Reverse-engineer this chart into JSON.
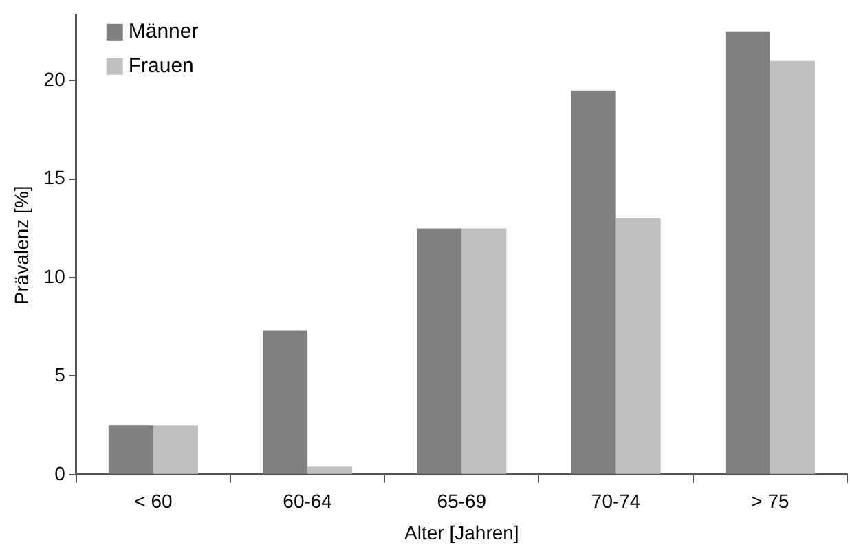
{
  "chart_data": {
    "type": "bar",
    "xlabel": "Alter [Jahren]",
    "ylabel": "Prävalenz [%]",
    "categories": [
      "< 60",
      "60-64",
      "65-69",
      "70-74",
      "> 75"
    ],
    "series": [
      {
        "name": "Männer",
        "color": "#808080",
        "values": [
          2.5,
          7.3,
          12.5,
          19.5,
          22.5
        ]
      },
      {
        "name": "Frauen",
        "color": "#c0c0c0",
        "values": [
          2.5,
          0.4,
          12.5,
          13,
          21
        ]
      }
    ],
    "ylim": [
      0,
      23.3
    ],
    "yticks": [
      0,
      5,
      10,
      15,
      20
    ],
    "grid": false,
    "legend": "top left"
  }
}
